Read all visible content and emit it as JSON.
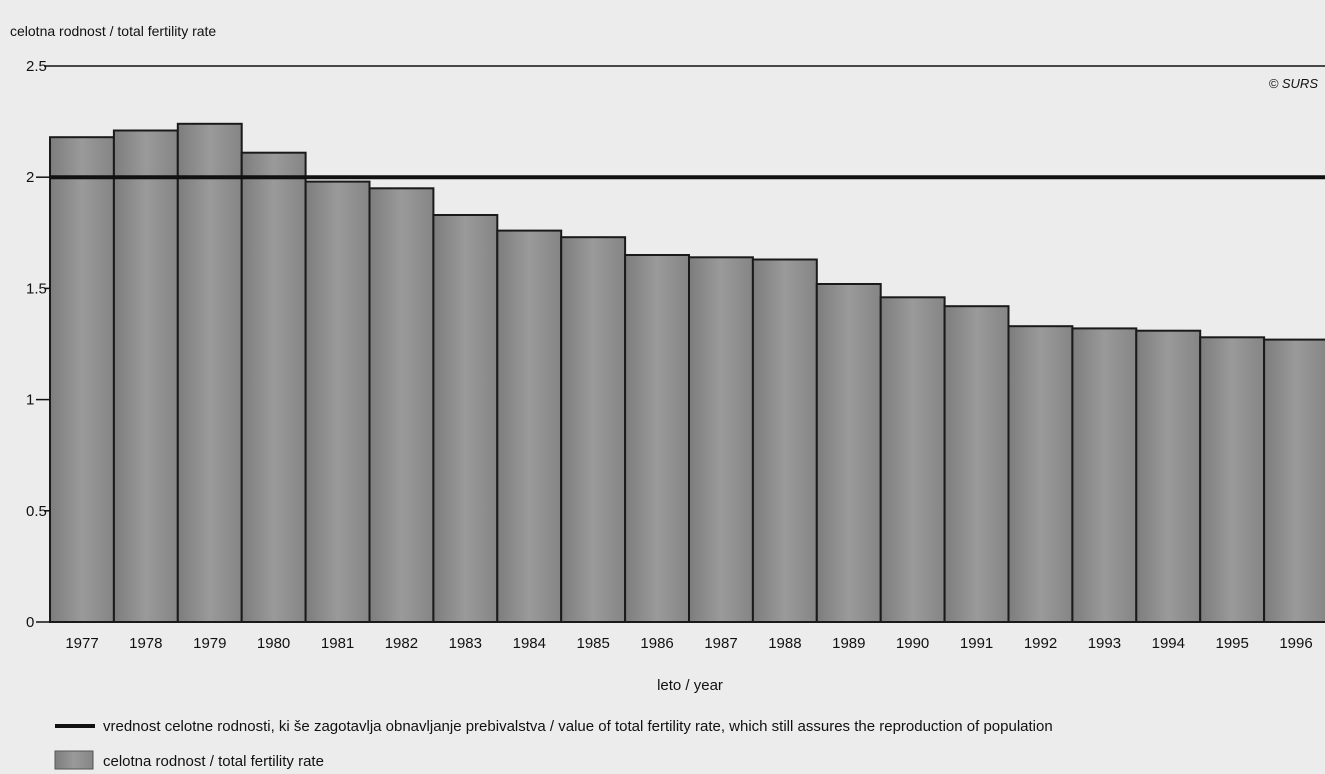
{
  "chart_data": {
    "type": "bar",
    "title": "",
    "ylabel": "celotna rodnost / total fertility rate",
    "xlabel": "leto / year",
    "credit": "© SURS",
    "categories": [
      "1977",
      "1978",
      "1979",
      "1980",
      "1981",
      "1982",
      "1983",
      "1984",
      "1985",
      "1986",
      "1987",
      "1988",
      "1989",
      "1990",
      "1991",
      "1992",
      "1993",
      "1994",
      "1995",
      "1996"
    ],
    "series": [
      {
        "name": "celotna rodnost / total fertility rate",
        "values": [
          2.18,
          2.21,
          2.24,
          2.11,
          1.98,
          1.95,
          1.83,
          1.76,
          1.73,
          1.65,
          1.64,
          1.63,
          1.52,
          1.46,
          1.42,
          1.33,
          1.32,
          1.31,
          1.28,
          1.27
        ]
      }
    ],
    "reference_line": {
      "value": 2.0,
      "label": "vrednost celotne rodnosti, ki še zagotavlja obnavljanje prebivalstva / value of total fertility rate, which still assures the reproduction of population"
    },
    "ylim": [
      0,
      2.5
    ],
    "yticks": [
      "0",
      "0.5",
      "1",
      "1.5",
      "2",
      "2.5"
    ],
    "grid": false,
    "legend_position": "bottom-left",
    "colors": {
      "bar_fill": "#8e8e8e",
      "bar_stroke": "#1a1a1a",
      "reference_line": "#111111",
      "background": "#ececec"
    }
  }
}
